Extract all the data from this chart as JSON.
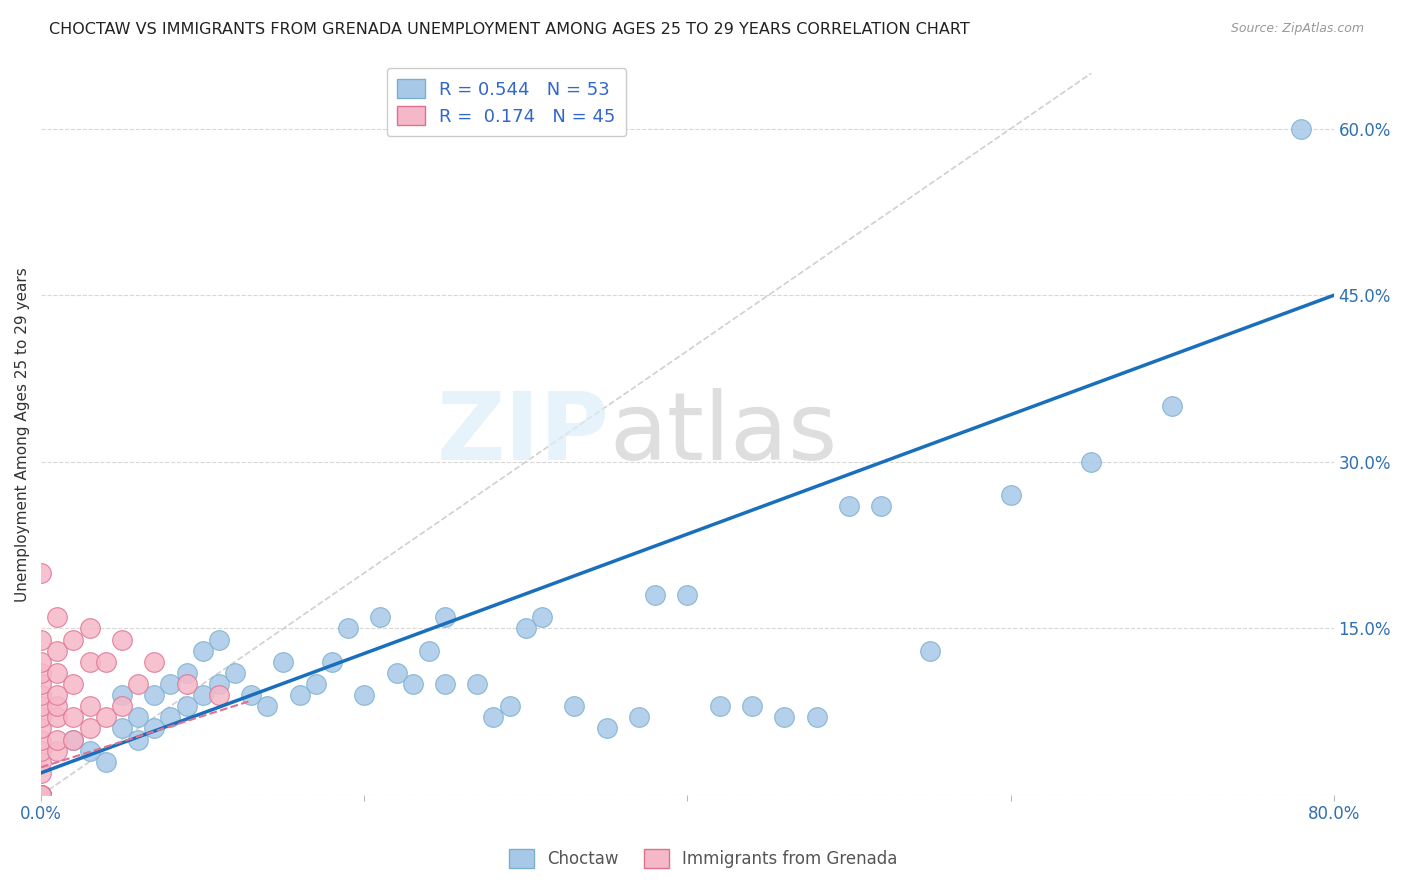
{
  "title": "CHOCTAW VS IMMIGRANTS FROM GRENADA UNEMPLOYMENT AMONG AGES 25 TO 29 YEARS CORRELATION CHART",
  "source": "Source: ZipAtlas.com",
  "ylabel": "Unemployment Among Ages 25 to 29 years",
  "xlim": [
    0.0,
    0.8
  ],
  "ylim": [
    0.0,
    0.65
  ],
  "xticks": [
    0.0,
    0.2,
    0.4,
    0.6,
    0.8
  ],
  "xticklabels": [
    "0.0%",
    "",
    "",
    "",
    "80.0%"
  ],
  "ytick_positions": [
    0.0,
    0.15,
    0.3,
    0.45,
    0.6
  ],
  "ytick_labels_right": [
    "",
    "15.0%",
    "30.0%",
    "45.0%",
    "60.0%"
  ],
  "choctaw_color": "#a8c8e8",
  "choctaw_edge": "#7aafd0",
  "grenada_color": "#f5b8c8",
  "grenada_edge": "#e07090",
  "choctaw_line_color": "#1a6fbd",
  "grenada_line_color": "#e07090",
  "diagonal_color": "#d0d0d0",
  "R_choctaw": 0.544,
  "N_choctaw": 53,
  "R_grenada": 0.174,
  "N_grenada": 45,
  "legend_labels": [
    "Choctaw",
    "Immigrants from Grenada"
  ],
  "choctaw_x": [
    0.02,
    0.03,
    0.04,
    0.05,
    0.05,
    0.06,
    0.06,
    0.07,
    0.07,
    0.08,
    0.08,
    0.09,
    0.09,
    0.1,
    0.1,
    0.11,
    0.11,
    0.12,
    0.13,
    0.14,
    0.15,
    0.16,
    0.17,
    0.18,
    0.19,
    0.2,
    0.21,
    0.22,
    0.23,
    0.24,
    0.25,
    0.25,
    0.27,
    0.28,
    0.29,
    0.3,
    0.31,
    0.33,
    0.35,
    0.37,
    0.38,
    0.4,
    0.42,
    0.44,
    0.46,
    0.48,
    0.5,
    0.52,
    0.55,
    0.6,
    0.65,
    0.7,
    0.78
  ],
  "choctaw_y": [
    0.05,
    0.04,
    0.03,
    0.06,
    0.09,
    0.05,
    0.07,
    0.06,
    0.09,
    0.07,
    0.1,
    0.08,
    0.11,
    0.09,
    0.13,
    0.1,
    0.14,
    0.11,
    0.09,
    0.08,
    0.12,
    0.09,
    0.1,
    0.12,
    0.15,
    0.09,
    0.16,
    0.11,
    0.1,
    0.13,
    0.1,
    0.16,
    0.1,
    0.07,
    0.08,
    0.15,
    0.16,
    0.08,
    0.06,
    0.07,
    0.18,
    0.18,
    0.08,
    0.08,
    0.07,
    0.07,
    0.26,
    0.26,
    0.13,
    0.27,
    0.3,
    0.35,
    0.6
  ],
  "grenada_x": [
    0.0,
    0.0,
    0.0,
    0.0,
    0.0,
    0.0,
    0.0,
    0.0,
    0.0,
    0.0,
    0.0,
    0.0,
    0.0,
    0.0,
    0.0,
    0.0,
    0.0,
    0.0,
    0.0,
    0.0,
    0.0,
    0.01,
    0.01,
    0.01,
    0.01,
    0.01,
    0.01,
    0.01,
    0.01,
    0.02,
    0.02,
    0.02,
    0.02,
    0.03,
    0.03,
    0.03,
    0.03,
    0.04,
    0.04,
    0.05,
    0.05,
    0.06,
    0.07,
    0.09,
    0.11
  ],
  "grenada_y": [
    0.0,
    0.0,
    0.0,
    0.0,
    0.0,
    0.0,
    0.0,
    0.0,
    0.02,
    0.03,
    0.04,
    0.05,
    0.06,
    0.07,
    0.08,
    0.09,
    0.1,
    0.11,
    0.12,
    0.14,
    0.2,
    0.04,
    0.05,
    0.07,
    0.08,
    0.09,
    0.11,
    0.13,
    0.16,
    0.05,
    0.07,
    0.1,
    0.14,
    0.06,
    0.08,
    0.12,
    0.15,
    0.07,
    0.12,
    0.08,
    0.14,
    0.1,
    0.12,
    0.1,
    0.09
  ],
  "choctaw_line_x": [
    0.0,
    0.8
  ],
  "choctaw_line_y": [
    0.02,
    0.45
  ],
  "grenada_line_x": [
    0.0,
    0.13
  ],
  "grenada_line_y": [
    0.025,
    0.085
  ]
}
